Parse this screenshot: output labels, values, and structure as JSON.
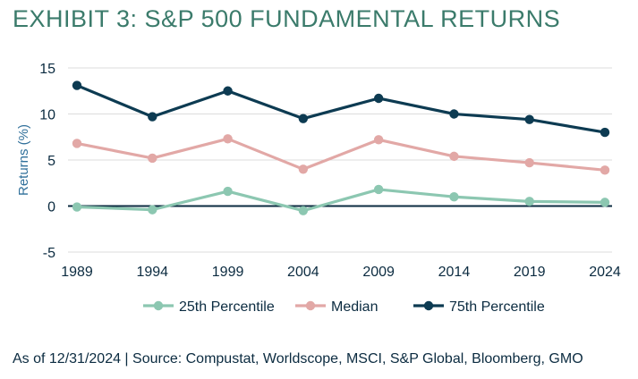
{
  "title": "EXHIBIT 3: S&P 500 FUNDAMENTAL RETURNS",
  "source": "As of 12/31/2024 | Source: Compustat, Worldscope, MSCI, S&P Global, Bloomberg, GMO",
  "chart_data": {
    "type": "line",
    "title": "EXHIBIT 3: S&P 500 FUNDAMENTAL RETURNS",
    "xlabel": "",
    "ylabel": "Returns (%)",
    "x": [
      "1989",
      "1994",
      "1999",
      "2004",
      "2009",
      "2014",
      "2019",
      "2024"
    ],
    "ylim": [
      -5,
      15
    ],
    "yticks": [
      "15",
      "10",
      "5",
      "0",
      "-5"
    ],
    "grid": "horizontal",
    "legend_position": "bottom",
    "series": [
      {
        "name": "25th Percentile",
        "color": "#8cc7b1",
        "values": [
          -0.1,
          -0.4,
          1.6,
          -0.5,
          1.8,
          1.0,
          0.5,
          0.4
        ]
      },
      {
        "name": "Median",
        "color": "#e2a8a6",
        "values": [
          6.8,
          5.2,
          7.3,
          4.0,
          7.2,
          5.4,
          4.7,
          3.9
        ]
      },
      {
        "name": "75th Percentile",
        "color": "#0d3b52",
        "values": [
          13.1,
          9.7,
          12.5,
          9.5,
          11.7,
          10.0,
          9.4,
          8.0
        ]
      }
    ]
  }
}
